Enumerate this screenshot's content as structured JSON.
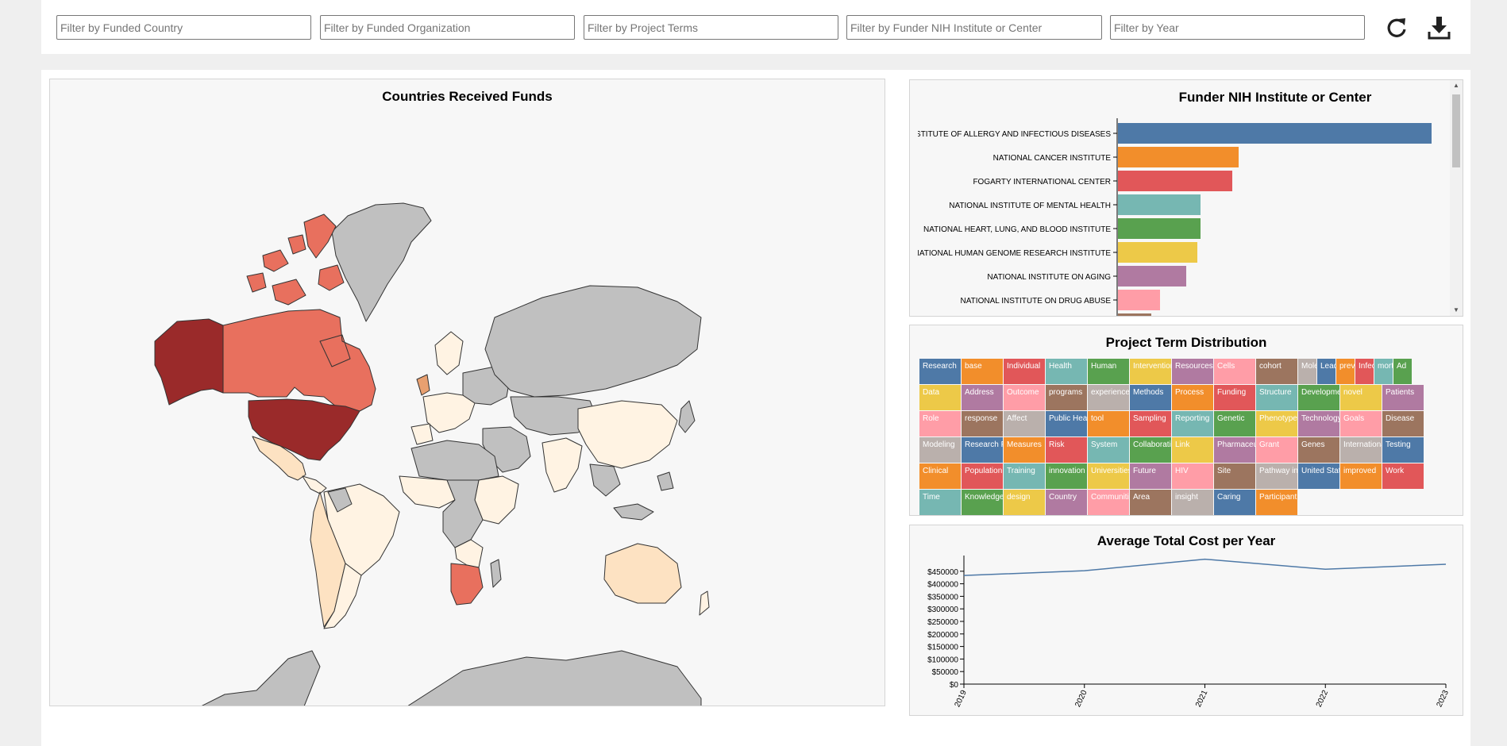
{
  "filters": {
    "country_placeholder": "Filter by Funded Country",
    "organization_placeholder": "Filter by Funded Organization",
    "terms_placeholder": "Filter by Project Terms",
    "institute_placeholder": "Filter by Funder NIH Institute or Center",
    "year_placeholder": "Filter by Year"
  },
  "toolbar": {
    "reset_icon": "refresh-icon",
    "download_icon": "download-icon"
  },
  "map": {
    "title": "Countries Received Funds",
    "colors": {
      "none": "#c0c0c0",
      "low": "#fff3e3",
      "mid_low": "#fde2c2",
      "mid": "#e8705e",
      "high": "#9a2a2a"
    }
  },
  "institutes": {
    "title": "Funder NIH Institute or Center",
    "labels": [
      "NATIONAL INSTITUTE OF ALLERGY AND INFECTIOUS DISEASES",
      "NATIONAL CANCER INSTITUTE",
      "FOGARTY INTERNATIONAL CENTER",
      "NATIONAL INSTITUTE OF MENTAL HEALTH",
      "NATIONAL HEART, LUNG, AND BLOOD INSTITUTE",
      "NATIONAL HUMAN GENOME RESEARCH INSTITUTE",
      "NATIONAL INSTITUTE ON AGING",
      "NATIONAL INSTITUTE ON DRUG ABUSE",
      ""
    ],
    "values": [
      395,
      152,
      144,
      104,
      104,
      100,
      86,
      53,
      42
    ],
    "colors": [
      "#4e79a7",
      "#f28e2b",
      "#e15759",
      "#76b7b2",
      "#59a14f",
      "#edc948",
      "#b07aa1",
      "#ff9da7",
      "#9c755f"
    ]
  },
  "treemap": {
    "title": "Project Term Distribution",
    "terms": [
      "Research",
      "base",
      "Individual",
      "Health",
      "Human",
      "Intervention",
      "Resources",
      "Cells",
      "cohort",
      "Molecular",
      "Lead",
      "prevent",
      "Infection",
      "mortality",
      "Ad",
      "Data",
      "Address",
      "Outcome",
      "programs",
      "experience",
      "Methods",
      "Process",
      "Funding",
      "Structure",
      "Development",
      "novel",
      "Patients",
      "Role",
      "response",
      "Affect",
      "Public Health",
      "tool",
      "Sampling",
      "Reporting",
      "Genetic",
      "Phenotype",
      "Technology",
      "Goals",
      "Disease",
      "Modeling",
      "Research Personnel",
      "Measures",
      "Risk",
      "System",
      "Collaborations",
      "Link",
      "Pharmaceutical Preparations",
      "Grant",
      "Genes",
      "International",
      "Testing",
      "Clinical",
      "Population",
      "Training",
      "innovation",
      "Universities",
      "Future",
      "HIV",
      "Site",
      "Pathway interactions",
      "United States National Institutes of Health",
      "improved",
      "Work",
      "Time",
      "Knowledge",
      "design",
      "Country",
      "Communities",
      "Area",
      "insight",
      "Caring",
      "Participant"
    ]
  },
  "cost_chart": {
    "title": "Average Total Cost per Year",
    "chart_data": {
      "type": "line",
      "x": [
        "2019",
        "2020",
        "2021",
        "2022",
        "2023"
      ],
      "series": [
        {
          "values": [
            433000,
            452000,
            498000,
            458000,
            478000
          ]
        }
      ],
      "ylim": [
        0,
        500000
      ],
      "y_ticks": [
        "$0",
        "$50000",
        "$100000",
        "$150000",
        "$200000",
        "$250000",
        "$300000",
        "$350000",
        "$400000",
        "$450000"
      ],
      "line_color": "#4e79a7"
    }
  }
}
